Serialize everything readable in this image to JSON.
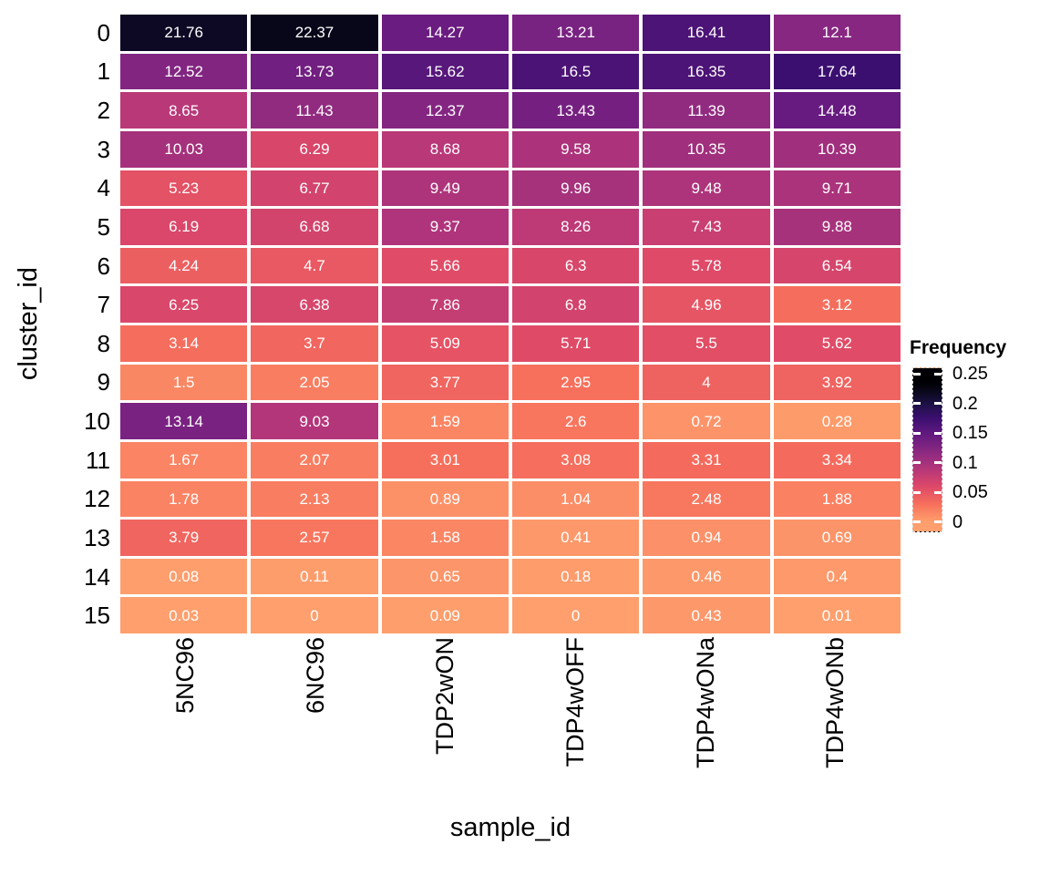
{
  "chart_data": {
    "type": "heatmap",
    "xlabel": "sample_id",
    "ylabel": "cluster_id",
    "x_categories": [
      "5NC96",
      "6NC96",
      "TDP2wON",
      "TDP4wOFF",
      "TDP4wONa",
      "TDP4wONb"
    ],
    "y_categories": [
      "0",
      "1",
      "2",
      "3",
      "4",
      "5",
      "6",
      "7",
      "8",
      "9",
      "10",
      "11",
      "12",
      "13",
      "14",
      "15"
    ],
    "values": [
      [
        21.76,
        22.37,
        14.27,
        13.21,
        16.41,
        12.1
      ],
      [
        12.52,
        13.73,
        15.62,
        16.5,
        16.35,
        17.64
      ],
      [
        8.65,
        11.43,
        12.37,
        13.43,
        11.39,
        14.48
      ],
      [
        10.03,
        6.29,
        8.68,
        9.58,
        10.35,
        10.39
      ],
      [
        5.23,
        6.77,
        9.49,
        9.96,
        9.48,
        9.71
      ],
      [
        6.19,
        6.68,
        9.37,
        8.26,
        7.43,
        9.88
      ],
      [
        4.24,
        4.7,
        5.66,
        6.3,
        5.78,
        6.54
      ],
      [
        6.25,
        6.38,
        7.86,
        6.8,
        4.96,
        3.12
      ],
      [
        3.14,
        3.7,
        5.09,
        5.71,
        5.5,
        5.62
      ],
      [
        1.5,
        2.05,
        3.77,
        2.95,
        4,
        3.92
      ],
      [
        13.14,
        9.03,
        1.59,
        2.6,
        0.72,
        0.28
      ],
      [
        1.67,
        2.07,
        3.01,
        3.08,
        3.31,
        3.34
      ],
      [
        1.78,
        2.13,
        0.89,
        1.04,
        2.48,
        1.88
      ],
      [
        3.79,
        2.57,
        1.58,
        0.41,
        0.94,
        0.69
      ],
      [
        0.08,
        0.11,
        0.65,
        0.18,
        0.46,
        0.4
      ],
      [
        0.03,
        0,
        0.09,
        0,
        0.43,
        0.01
      ]
    ],
    "legend": {
      "title": "Frequency",
      "tick_labels": [
        "0.25",
        "0.2",
        "0.15",
        "0.1",
        "0.05",
        "0"
      ],
      "tick_values_percent": [
        25,
        20,
        15,
        10,
        5,
        0
      ],
      "position": "right"
    },
    "colormap": {
      "name": "magma-reversed-truncated",
      "anchors": [
        "#000004",
        "#16103A",
        "#3B0F70",
        "#641A80",
        "#8C2981",
        "#B73779",
        "#DE4968",
        "#F7705C",
        "#FE9F6D"
      ],
      "t_end": 0.8,
      "scale_max_percent": 23.5,
      "cell_text_color": "#ffffff",
      "cell_border_color": "#ffffff"
    },
    "grid": false
  }
}
